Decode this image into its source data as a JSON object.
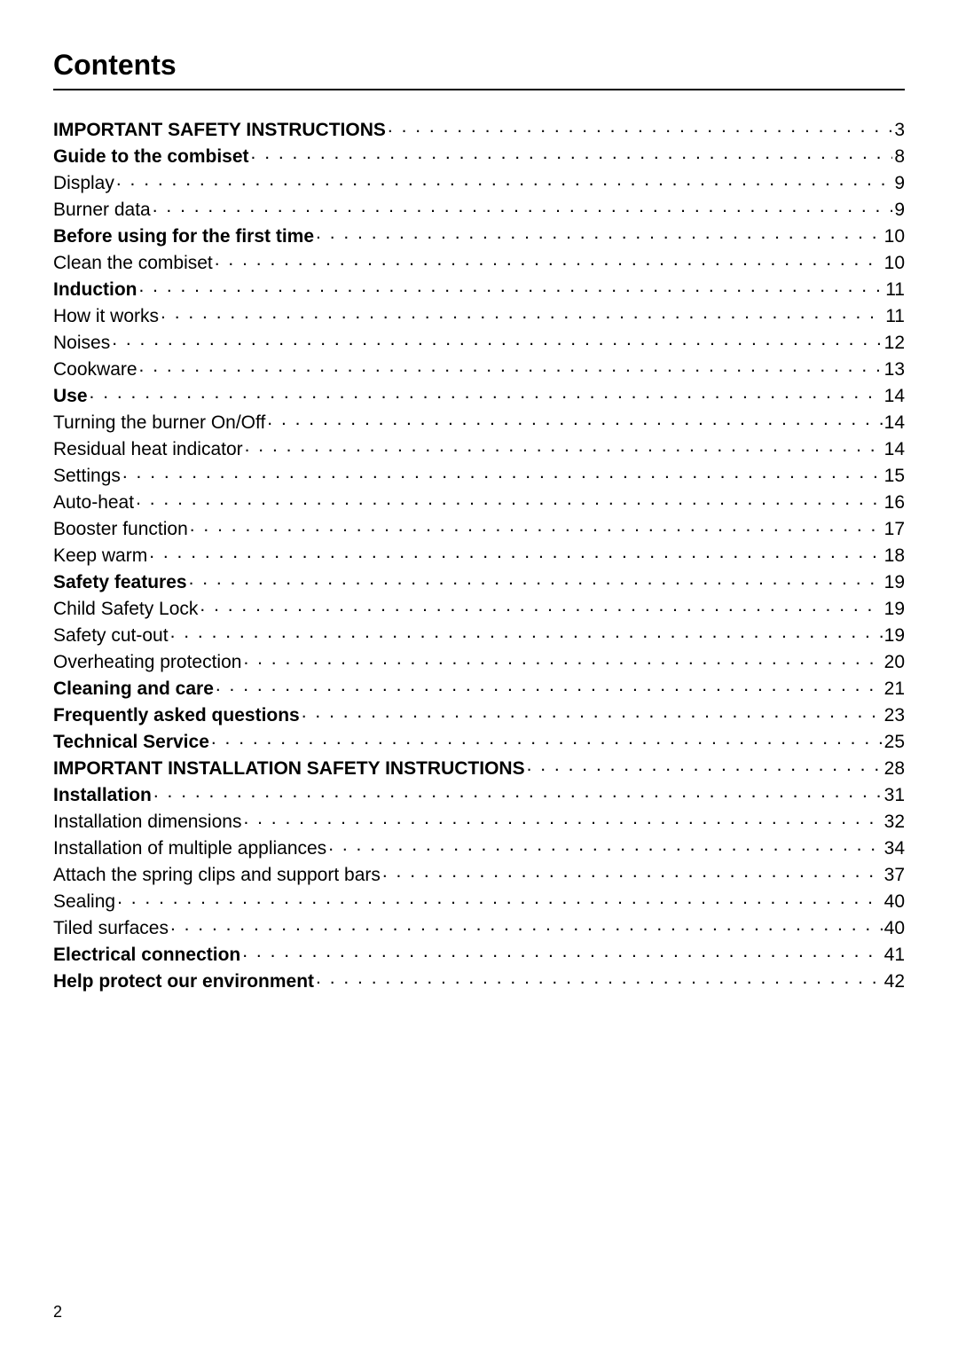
{
  "title": "Contents",
  "page_number": "2",
  "text_color": "#000000",
  "background_color": "#ffffff",
  "font_size_title": 32,
  "font_size_body": 21,
  "entries": [
    {
      "label": "IMPORTANT SAFETY INSTRUCTIONS",
      "page": "3",
      "bold": true
    },
    {
      "label": "Guide to the combiset",
      "page": "8",
      "bold": true
    },
    {
      "label": "Display",
      "page": "9",
      "bold": false
    },
    {
      "label": "Burner data",
      "page": "9",
      "bold": false
    },
    {
      "label": "Before using for the first time",
      "page": "10",
      "bold": true
    },
    {
      "label": "Clean the combiset",
      "page": "10",
      "bold": false
    },
    {
      "label": "Induction",
      "page": "11",
      "bold": true
    },
    {
      "label": "How it works",
      "page": "11",
      "bold": false
    },
    {
      "label": "Noises",
      "page": "12",
      "bold": false
    },
    {
      "label": "Cookware",
      "page": "13",
      "bold": false
    },
    {
      "label": "Use",
      "page": "14",
      "bold": true
    },
    {
      "label": "Turning the burner On/Off",
      "page": "14",
      "bold": false
    },
    {
      "label": "Residual heat indicator",
      "page": "14",
      "bold": false
    },
    {
      "label": "Settings",
      "page": "15",
      "bold": false
    },
    {
      "label": "Auto-heat",
      "page": "16",
      "bold": false
    },
    {
      "label": "Booster function",
      "page": "17",
      "bold": false
    },
    {
      "label": "Keep warm",
      "page": "18",
      "bold": false
    },
    {
      "label": "Safety features",
      "page": "19",
      "bold": true
    },
    {
      "label": "Child Safety Lock",
      "page": "19",
      "bold": false
    },
    {
      "label": "Safety cut-out",
      "page": "19",
      "bold": false
    },
    {
      "label": "Overheating protection",
      "page": "20",
      "bold": false
    },
    {
      "label": "Cleaning and care",
      "page": "21",
      "bold": true
    },
    {
      "label": "Frequently asked questions",
      "page": "23",
      "bold": true
    },
    {
      "label": "Technical Service",
      "page": "25",
      "bold": true
    },
    {
      "label": "IMPORTANT INSTALLATION SAFETY INSTRUCTIONS",
      "page": "28",
      "bold": true
    },
    {
      "label": "Installation",
      "page": "31",
      "bold": true
    },
    {
      "label": "Installation dimensions",
      "page": "32",
      "bold": false
    },
    {
      "label": "Installation of multiple appliances",
      "page": "34",
      "bold": false
    },
    {
      "label": "Attach the spring clips and support bars",
      "page": "37",
      "bold": false
    },
    {
      "label": "Sealing",
      "page": "40",
      "bold": false
    },
    {
      "label": "Tiled surfaces",
      "page": "40",
      "bold": false
    },
    {
      "label": "Electrical connection",
      "page": "41",
      "bold": true
    },
    {
      "label": "Help protect our environment",
      "page": "42",
      "bold": true
    }
  ]
}
